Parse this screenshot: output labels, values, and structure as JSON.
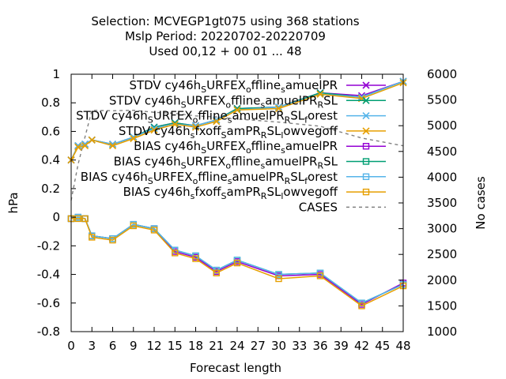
{
  "chart_data": {
    "type": "line",
    "title_lines": [
      "Selection: MCVEGP1gt075 using   368 stations",
      "Mslp   Period: 20220702-20220709",
      "Used  00,12  + 00 01 ... 48"
    ],
    "xlabel": "Forecast length",
    "ylabel": "hPa",
    "y2label": "No cases",
    "xlim": [
      0,
      48
    ],
    "ylim": [
      -0.8,
      1
    ],
    "y2lim": [
      1000,
      6000
    ],
    "xticks": [
      0,
      3,
      6,
      9,
      12,
      15,
      18,
      21,
      24,
      27,
      30,
      33,
      36,
      39,
      42,
      45,
      48
    ],
    "yticks": [
      -0.8,
      -0.6,
      -0.4,
      -0.2,
      0,
      0.2,
      0.4,
      0.6,
      0.8,
      1
    ],
    "ytick_labels": [
      "-0.8",
      "-0.6",
      "-0.4",
      "-0.2",
      "0",
      "0.2",
      "0.4",
      "0.6",
      "0.8",
      "1"
    ],
    "y2ticks": [
      1000,
      1500,
      2000,
      2500,
      3000,
      3500,
      4000,
      4500,
      5000,
      5500,
      6000
    ],
    "x": [
      0,
      1,
      2,
      3,
      6,
      9,
      12,
      15,
      18,
      21,
      24,
      30,
      36,
      42,
      48
    ],
    "legend_position": "top-right",
    "series": [
      {
        "name": "STDV cy46h_SURFEX_offline_samuelPR",
        "role": "stdv",
        "color": "#9400d3",
        "marker": "x",
        "values": [
          0.4,
          0.5,
          0.51,
          0.54,
          0.51,
          0.56,
          0.63,
          0.66,
          0.64,
          0.68,
          0.76,
          0.77,
          0.87,
          0.85,
          0.95
        ]
      },
      {
        "name": "STDV cy46h_SURFEX_offline_samuelPR_RSL",
        "role": "stdv",
        "color": "#009e73",
        "marker": "x",
        "values": [
          0.4,
          0.5,
          0.51,
          0.54,
          0.51,
          0.56,
          0.63,
          0.66,
          0.64,
          0.68,
          0.76,
          0.77,
          0.87,
          0.84,
          0.95
        ]
      },
      {
        "name": "STDV cy46h_SURFEX_offline_samuelPR_RSL_forest",
        "role": "stdv",
        "color": "#56b4e9",
        "marker": "x",
        "values": [
          0.4,
          0.5,
          0.51,
          0.54,
          0.51,
          0.56,
          0.62,
          0.65,
          0.64,
          0.68,
          0.75,
          0.77,
          0.86,
          0.84,
          0.95
        ]
      },
      {
        "name": "STDV cy46h_sfxoff_SamPR_RSL_lowvegoff",
        "role": "stdv",
        "color": "#e69f00",
        "marker": "x",
        "values": [
          0.4,
          0.49,
          0.5,
          0.54,
          0.5,
          0.55,
          0.61,
          0.65,
          0.63,
          0.67,
          0.75,
          0.76,
          0.86,
          0.83,
          0.94
        ]
      },
      {
        "name": "BIAS cy46h_SURFEX_offline_samuelPR",
        "role": "bias",
        "color": "#9400d3",
        "marker": "s",
        "values": [
          -0.01,
          0.0,
          -0.01,
          -0.13,
          -0.15,
          -0.05,
          -0.08,
          -0.24,
          -0.28,
          -0.38,
          -0.31,
          -0.41,
          -0.4,
          -0.61,
          -0.46
        ]
      },
      {
        "name": "BIAS cy46h_SURFEX_offline_samuelPR_RSL",
        "role": "bias",
        "color": "#009e73",
        "marker": "s",
        "values": [
          -0.01,
          0.0,
          -0.01,
          -0.13,
          -0.15,
          -0.05,
          -0.08,
          -0.23,
          -0.27,
          -0.37,
          -0.3,
          -0.4,
          -0.39,
          -0.6,
          -0.47
        ]
      },
      {
        "name": "BIAS cy46h_SURFEX_offline_samuelPR_RSL_forest",
        "role": "bias",
        "color": "#56b4e9",
        "marker": "s",
        "values": [
          -0.01,
          0.0,
          -0.01,
          -0.13,
          -0.15,
          -0.05,
          -0.08,
          -0.23,
          -0.27,
          -0.37,
          -0.3,
          -0.4,
          -0.39,
          -0.6,
          -0.47
        ]
      },
      {
        "name": "BIAS cy46h_sfxoff_SamPR_RSL_lowvegoff",
        "role": "bias",
        "color": "#e69f00",
        "marker": "s",
        "values": [
          -0.01,
          -0.01,
          -0.01,
          -0.14,
          -0.16,
          -0.06,
          -0.09,
          -0.25,
          -0.29,
          -0.39,
          -0.32,
          -0.43,
          -0.41,
          -0.62,
          -0.48
        ]
      }
    ],
    "cases": {
      "name": "CASES",
      "color": "#808080",
      "axis": "y2",
      "x": [
        0,
        1,
        2,
        3,
        6,
        9,
        12,
        15,
        18,
        21,
        24,
        30,
        36,
        42,
        48
      ],
      "values": [
        3550,
        4250,
        4780,
        5300,
        5290,
        5300,
        5260,
        5240,
        5190,
        5170,
        5130,
        5070,
        4990,
        4760,
        4610
      ]
    }
  }
}
